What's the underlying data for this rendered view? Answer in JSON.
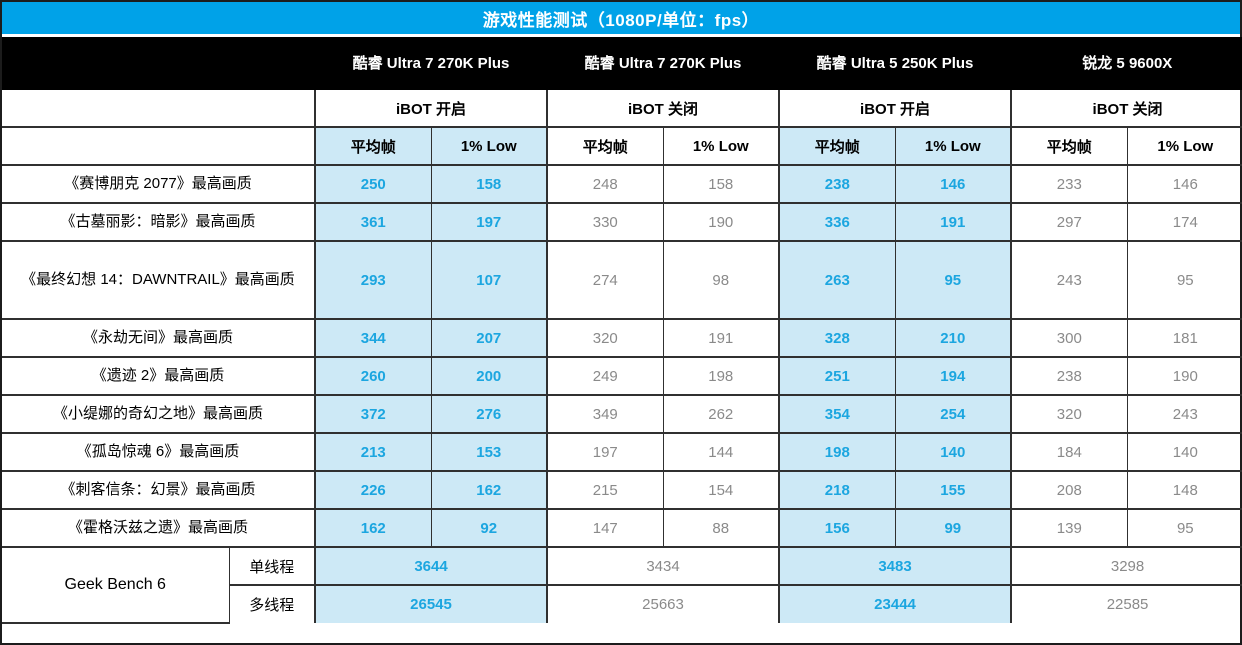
{
  "colors": {
    "title_bar_bg": "#00A2E8",
    "title_text": "#FFFFFF",
    "cpu_header_bg": "#000000",
    "cpu_header_text": "#FFFFFF",
    "highlight_cell_bg": "#CDE9F6",
    "highlight_value_text": "#1CA6E0",
    "normal_value_text": "#8A8A8A",
    "grid_border": "#303030"
  },
  "chart_data": {
    "type": "table",
    "title": "游戏性能测试（1080P/单位：fps）",
    "column_groups": [
      {
        "cpu": "酷睿 Ultra 7 270K Plus",
        "ibot_mode": "iBOT 开启",
        "highlight": true
      },
      {
        "cpu": "酷睿 Ultra 7 270K Plus",
        "ibot_mode": "iBOT 关闭",
        "highlight": false
      },
      {
        "cpu": "酷睿 Ultra 5 250K Plus",
        "ibot_mode": "iBOT 开启",
        "highlight": true
      },
      {
        "cpu": "锐龙 5 9600X",
        "ibot_mode": "iBOT 关闭",
        "highlight": false
      }
    ],
    "metric_headers": [
      "平均帧",
      "1% Low"
    ],
    "rows": [
      {
        "label": "《赛博朋克 2077》最高画质",
        "tall": false,
        "values": [
          [
            250,
            158
          ],
          [
            248,
            158
          ],
          [
            238,
            146
          ],
          [
            233,
            146
          ]
        ]
      },
      {
        "label": "《古墓丽影：暗影》最高画质",
        "tall": false,
        "values": [
          [
            361,
            197
          ],
          [
            330,
            190
          ],
          [
            336,
            191
          ],
          [
            297,
            174
          ]
        ]
      },
      {
        "label": "《最终幻想 14：DAWNTRAIL》最高画质",
        "tall": true,
        "values": [
          [
            293,
            107
          ],
          [
            274,
            98
          ],
          [
            263,
            95
          ],
          [
            243,
            95
          ]
        ]
      },
      {
        "label": "《永劫无间》最高画质",
        "tall": false,
        "values": [
          [
            344,
            207
          ],
          [
            320,
            191
          ],
          [
            328,
            210
          ],
          [
            300,
            181
          ]
        ]
      },
      {
        "label": "《遗迹 2》最高画质",
        "tall": false,
        "values": [
          [
            260,
            200
          ],
          [
            249,
            198
          ],
          [
            251,
            194
          ],
          [
            238,
            190
          ]
        ]
      },
      {
        "label": "《小缇娜的奇幻之地》最高画质",
        "tall": false,
        "values": [
          [
            372,
            276
          ],
          [
            349,
            262
          ],
          [
            354,
            254
          ],
          [
            320,
            243
          ]
        ]
      },
      {
        "label": "《孤岛惊魂 6》最高画质",
        "tall": false,
        "values": [
          [
            213,
            153
          ],
          [
            197,
            144
          ],
          [
            198,
            140
          ],
          [
            184,
            140
          ]
        ]
      },
      {
        "label": "《刺客信条：幻景》最高画质",
        "tall": false,
        "values": [
          [
            226,
            162
          ],
          [
            215,
            154
          ],
          [
            218,
            155
          ],
          [
            208,
            148
          ]
        ]
      },
      {
        "label": "《霍格沃兹之遗》最高画质",
        "tall": false,
        "values": [
          [
            162,
            92
          ],
          [
            147,
            88
          ],
          [
            156,
            99
          ],
          [
            139,
            95
          ]
        ]
      }
    ],
    "benchmark": {
      "label": "Geek Bench 6",
      "rows": [
        {
          "label": "单线程",
          "values": [
            3644,
            3434,
            3483,
            3298
          ]
        },
        {
          "label": "多线程",
          "values": [
            26545,
            25663,
            23444,
            22585
          ]
        }
      ]
    }
  }
}
